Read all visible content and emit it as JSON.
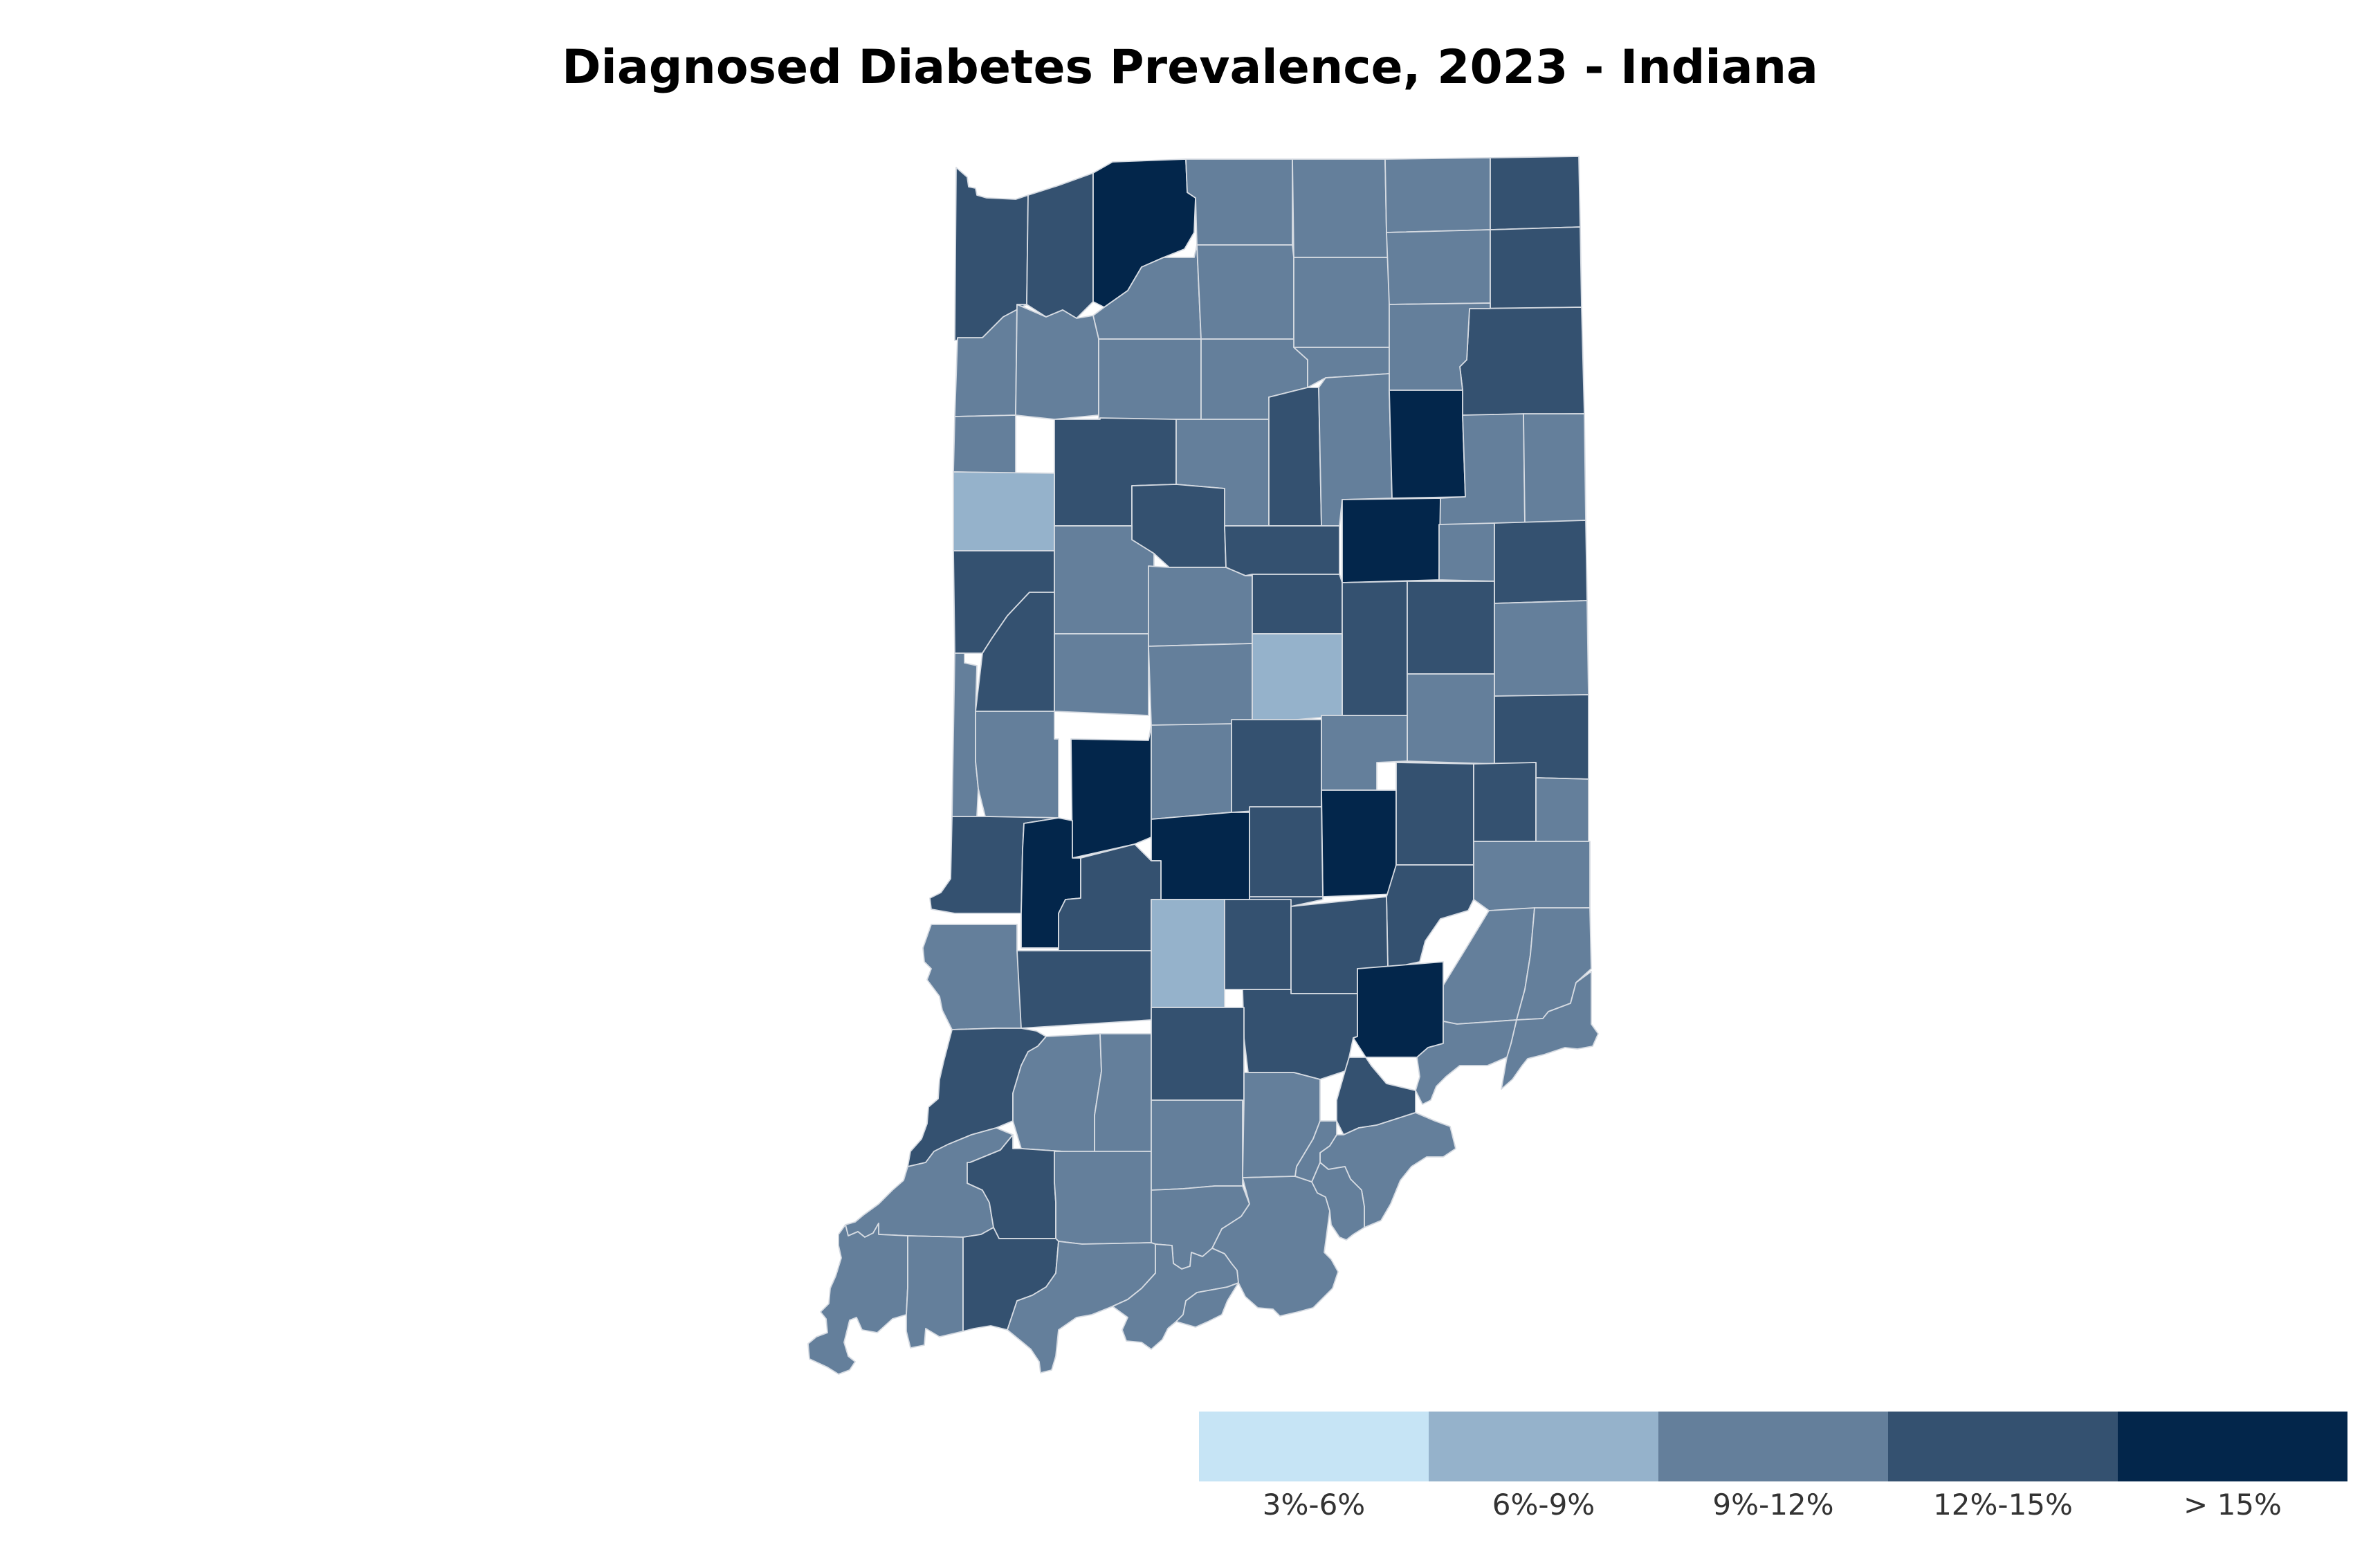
{
  "title": "Diagnosed Diabetes Prevalence, 2023 - Indiana",
  "colors": {
    "c1": "#c6e4f5",
    "c2": "#95b2cb",
    "c3": "#647f9b",
    "c4": "#345170",
    "c5": "#03264b",
    "border": "#d6dbe2"
  },
  "legend": [
    {
      "label": "3%-6%",
      "color": "#c6e4f5"
    },
    {
      "label": "6%-9%",
      "color": "#95b2cb"
    },
    {
      "label": "9%-12%",
      "color": "#647f9b"
    },
    {
      "label": "12%-15%",
      "color": "#345170"
    },
    {
      "label": "> 15%",
      "color": "#03264b"
    }
  ]
}
